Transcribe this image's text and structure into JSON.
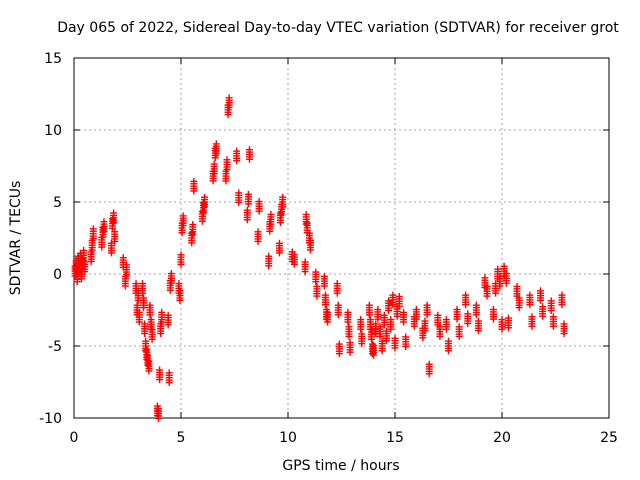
{
  "chart_data": {
    "type": "scatter",
    "title": "Day 065 of 2022, Sidereal Day-to-day VTEC variation (SDTVAR) for receiver grot",
    "xlabel": "GPS time / hours",
    "ylabel": "SDTVAR / TECUs",
    "xlim": [
      0,
      25
    ],
    "ylim": [
      -10,
      15
    ],
    "xticks": [
      0,
      5,
      10,
      15,
      20,
      25
    ],
    "yticks": [
      -10,
      -5,
      0,
      5,
      10,
      15
    ],
    "grid": true,
    "marker": "+",
    "color": "#ff0000",
    "series": [
      {
        "name": "SDTVAR",
        "points": [
          [
            0.05,
            0.2
          ],
          [
            0.1,
            0.6
          ],
          [
            0.15,
            -0.2
          ],
          [
            0.2,
            0.9
          ],
          [
            0.25,
            0.4
          ],
          [
            0.3,
            1.1
          ],
          [
            0.35,
            0.0
          ],
          [
            0.4,
            0.7
          ],
          [
            0.45,
            1.3
          ],
          [
            0.5,
            0.5
          ],
          [
            0.8,
            1.2
          ],
          [
            0.85,
            2.0
          ],
          [
            0.9,
            2.8
          ],
          [
            1.3,
            2.2
          ],
          [
            1.35,
            2.9
          ],
          [
            1.4,
            3.3
          ],
          [
            1.75,
            1.8
          ],
          [
            1.8,
            3.5
          ],
          [
            1.85,
            3.9
          ],
          [
            1.9,
            2.6
          ],
          [
            2.3,
            0.8
          ],
          [
            2.4,
            -0.5
          ],
          [
            2.45,
            0.3
          ],
          [
            2.9,
            -1.0
          ],
          [
            2.95,
            -2.5
          ],
          [
            3.0,
            -1.5
          ],
          [
            3.05,
            -3.0
          ],
          [
            3.2,
            -1.0
          ],
          [
            3.25,
            -2.0
          ],
          [
            3.3,
            -3.8
          ],
          [
            3.35,
            -5.0
          ],
          [
            3.4,
            -5.6
          ],
          [
            3.45,
            -6.0
          ],
          [
            3.5,
            -6.4
          ],
          [
            3.55,
            -2.5
          ],
          [
            3.6,
            -3.5
          ],
          [
            3.65,
            -4.2
          ],
          [
            3.9,
            -9.5
          ],
          [
            3.95,
            -9.7
          ],
          [
            4.0,
            -7.0
          ],
          [
            4.05,
            -3.8
          ],
          [
            4.1,
            -3.0
          ],
          [
            4.4,
            -3.2
          ],
          [
            4.45,
            -7.2
          ],
          [
            4.5,
            -0.8
          ],
          [
            4.55,
            -0.3
          ],
          [
            4.9,
            -1.0
          ],
          [
            4.95,
            -1.5
          ],
          [
            5.0,
            1.0
          ],
          [
            5.05,
            3.2
          ],
          [
            5.1,
            3.7
          ],
          [
            5.5,
            2.5
          ],
          [
            5.55,
            3.1
          ],
          [
            5.6,
            6.1
          ],
          [
            6.0,
            4.0
          ],
          [
            6.05,
            4.6
          ],
          [
            6.1,
            5.0
          ],
          [
            6.5,
            6.8
          ],
          [
            6.55,
            7.3
          ],
          [
            6.6,
            8.4
          ],
          [
            6.65,
            8.7
          ],
          [
            7.1,
            6.8
          ],
          [
            7.15,
            7.6
          ],
          [
            7.2,
            11.4
          ],
          [
            7.25,
            11.9
          ],
          [
            7.6,
            8.2
          ],
          [
            7.7,
            5.3
          ],
          [
            8.1,
            4.1
          ],
          [
            8.15,
            5.2
          ],
          [
            8.2,
            8.3
          ],
          [
            8.6,
            2.6
          ],
          [
            8.65,
            4.7
          ],
          [
            9.1,
            0.9
          ],
          [
            9.15,
            3.3
          ],
          [
            9.2,
            3.8
          ],
          [
            9.6,
            1.8
          ],
          [
            9.65,
            3.9
          ],
          [
            9.7,
            4.5
          ],
          [
            9.75,
            5.0
          ],
          [
            10.2,
            1.2
          ],
          [
            10.3,
            1.0
          ],
          [
            10.8,
            0.5
          ],
          [
            10.85,
            3.8
          ],
          [
            10.9,
            3.2
          ],
          [
            11.0,
            2.5
          ],
          [
            11.05,
            2.0
          ],
          [
            11.3,
            -0.2
          ],
          [
            11.35,
            -1.2
          ],
          [
            11.7,
            -0.5
          ],
          [
            11.75,
            -1.8
          ],
          [
            11.8,
            -2.8
          ],
          [
            11.85,
            -3.0
          ],
          [
            12.3,
            -1.0
          ],
          [
            12.35,
            -2.5
          ],
          [
            12.4,
            -5.2
          ],
          [
            12.8,
            -3.0
          ],
          [
            12.85,
            -4.0
          ],
          [
            12.9,
            -5.1
          ],
          [
            13.4,
            -3.5
          ],
          [
            13.45,
            -4.5
          ],
          [
            13.8,
            -2.5
          ],
          [
            13.85,
            -3.5
          ],
          [
            13.9,
            -4.2
          ],
          [
            13.95,
            -5.2
          ],
          [
            14.0,
            -5.3
          ],
          [
            14.1,
            -3.8
          ],
          [
            14.2,
            -2.8
          ],
          [
            14.3,
            -4.0
          ],
          [
            14.4,
            -5.0
          ],
          [
            14.5,
            -3.2
          ],
          [
            14.6,
            -4.3
          ],
          [
            14.7,
            -2.2
          ],
          [
            14.8,
            -3.5
          ],
          [
            14.9,
            -1.8
          ],
          [
            15.0,
            -4.8
          ],
          [
            15.1,
            -2.6
          ],
          [
            15.2,
            -1.9
          ],
          [
            15.4,
            -3.0
          ],
          [
            15.5,
            -4.7
          ],
          [
            15.9,
            -3.3
          ],
          [
            16.0,
            -2.8
          ],
          [
            16.3,
            -4.1
          ],
          [
            16.4,
            -3.6
          ],
          [
            16.5,
            -2.5
          ],
          [
            16.6,
            -6.6
          ],
          [
            17.0,
            -3.2
          ],
          [
            17.1,
            -4.0
          ],
          [
            17.4,
            -3.5
          ],
          [
            17.5,
            -5.0
          ],
          [
            17.9,
            -2.8
          ],
          [
            18.0,
            -4.0
          ],
          [
            18.3,
            -1.8
          ],
          [
            18.4,
            -3.1
          ],
          [
            18.8,
            -2.5
          ],
          [
            18.9,
            -3.6
          ],
          [
            19.2,
            -0.6
          ],
          [
            19.3,
            -1.2
          ],
          [
            19.6,
            -2.8
          ],
          [
            19.7,
            -1.0
          ],
          [
            19.8,
            0.0
          ],
          [
            19.9,
            -0.5
          ],
          [
            20.0,
            -3.5
          ],
          [
            20.1,
            0.2
          ],
          [
            20.2,
            -0.3
          ],
          [
            20.3,
            -3.4
          ],
          [
            20.7,
            -1.2
          ],
          [
            20.8,
            -2.0
          ],
          [
            21.3,
            -1.8
          ],
          [
            21.4,
            -3.3
          ],
          [
            21.8,
            -1.5
          ],
          [
            21.9,
            -2.6
          ],
          [
            22.3,
            -2.2
          ],
          [
            22.4,
            -3.3
          ],
          [
            22.8,
            -1.8
          ],
          [
            22.9,
            -3.8
          ]
        ]
      }
    ]
  }
}
